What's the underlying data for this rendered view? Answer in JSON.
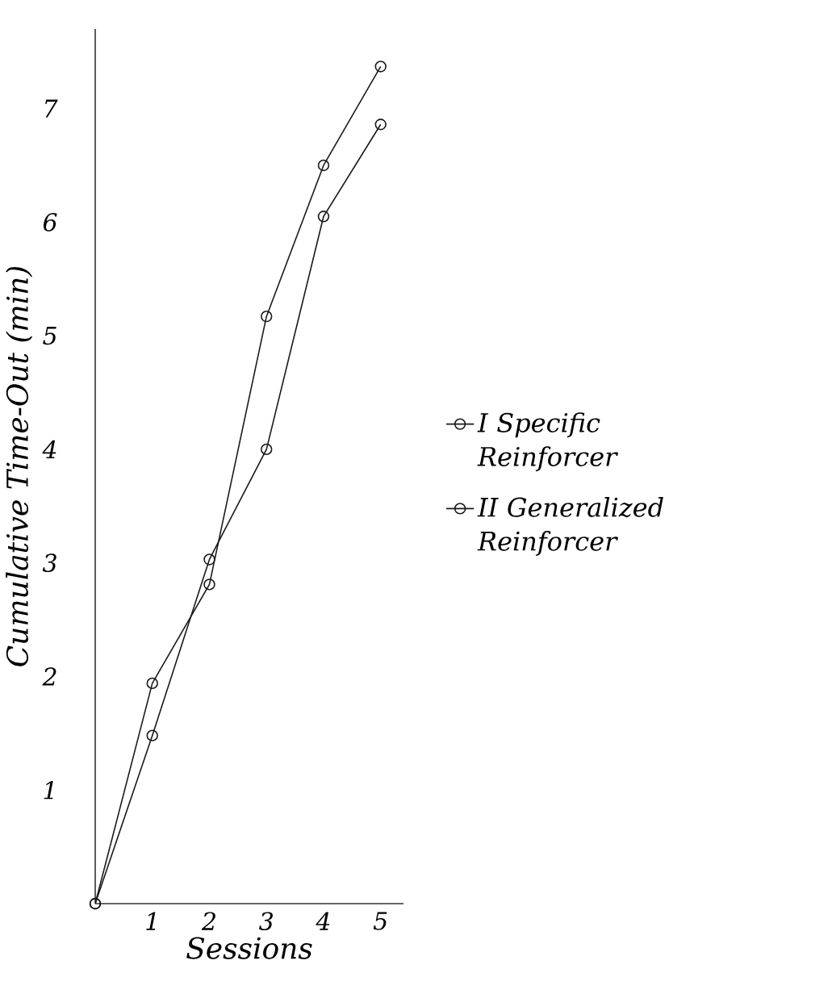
{
  "chart_data": {
    "type": "line",
    "xlabel": "Sessions",
    "ylabel": "Cumulative Time-Out (min)",
    "x": [
      0,
      1,
      2,
      3,
      4,
      5
    ],
    "series": [
      {
        "name": "I Specific Reinforcer",
        "color": "#1a1a1a",
        "values": [
          0,
          1.94,
          2.81,
          5.17,
          6.5,
          7.37
        ]
      },
      {
        "name": "II Generalized Reinforcer",
        "color": "#1a1a1a",
        "values": [
          0,
          1.48,
          3.03,
          4.0,
          6.05,
          6.86
        ]
      }
    ],
    "xlim": [
      0,
      5.4
    ],
    "ylim": [
      0,
      7.7
    ],
    "xticks": [
      1,
      2,
      3,
      4,
      5
    ],
    "yticks": [
      1,
      2,
      3,
      4,
      5,
      6,
      7
    ],
    "legend": "right",
    "marker": "circle",
    "line_style": "solid",
    "grid": false
  }
}
